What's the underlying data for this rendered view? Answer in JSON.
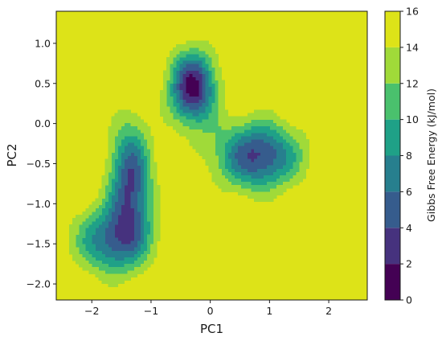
{
  "chart_data": {
    "type": "heatmap",
    "subtype": "filled-contour",
    "title": "",
    "xlabel": "PC1",
    "ylabel": "PC2",
    "xlim": [
      -2.6,
      2.65
    ],
    "ylim": [
      -2.2,
      1.4
    ],
    "xticks": [
      -2,
      -1,
      0,
      1,
      2
    ],
    "xtick_labels": [
      "−2",
      "−1",
      "0",
      "1",
      "2"
    ],
    "yticks": [
      -2.0,
      -1.5,
      -1.0,
      -0.5,
      0.0,
      0.5,
      1.0
    ],
    "ytick_labels": [
      "−2.0",
      "−1.5",
      "−1.0",
      "−0.5",
      "0.0",
      "0.5",
      "1.0"
    ],
    "grid": false,
    "colorbar": {
      "label": "Gibbs Free Energy (kJ/mol)",
      "levels": [
        0,
        2,
        4,
        6,
        8,
        10,
        12,
        14,
        16
      ],
      "tick_labels": [
        "0",
        "2",
        "4",
        "6",
        "8",
        "10",
        "12",
        "14",
        "16"
      ],
      "colors": [
        "#440154",
        "#46327e",
        "#365c8d",
        "#277f8e",
        "#1fa187",
        "#4ac16d",
        "#a0da39",
        "#dde318"
      ]
    },
    "minima": [
      {
        "pc1": -0.3,
        "pc2": 0.45,
        "depth": 15.6,
        "sx": 0.28,
        "sy": 0.32
      },
      {
        "pc1": 0.8,
        "pc2": -0.4,
        "depth": 13.0,
        "sx": 0.5,
        "sy": 0.3
      },
      {
        "pc1": -1.35,
        "pc2": -0.7,
        "depth": 12.5,
        "sx": 0.25,
        "sy": 0.5
      },
      {
        "pc1": -1.65,
        "pc2": -1.45,
        "depth": 10.5,
        "sx": 0.45,
        "sy": 0.3
      }
    ]
  }
}
